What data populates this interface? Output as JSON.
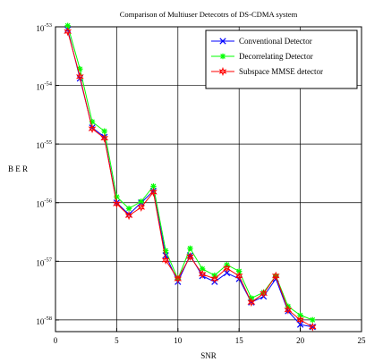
{
  "chart_data": {
    "type": "line",
    "title": "Comparison of Multiuser Detecotrs of DS-CDMA system",
    "xlabel": "SNR",
    "ylabel": "B E R",
    "xlim": [
      0,
      25
    ],
    "ylim_log10": [
      -58.2,
      -53.0
    ],
    "y_scale": "log",
    "grid": true,
    "legend_position": "top-right",
    "x_ticks": [
      "0",
      "5",
      "10",
      "15",
      "20",
      "25"
    ],
    "y_ticks": [
      {
        "base": "10",
        "exp": "-53",
        "value": -53
      },
      {
        "base": "10",
        "exp": "-54",
        "value": -54
      },
      {
        "base": "10",
        "exp": "-55",
        "value": -55
      },
      {
        "base": "10",
        "exp": "-56",
        "value": -56
      },
      {
        "base": "10",
        "exp": "-57",
        "value": -57
      },
      {
        "base": "10",
        "exp": "-58",
        "value": -58
      }
    ],
    "x": [
      1,
      2,
      3,
      4,
      5,
      6,
      7,
      8,
      9,
      10,
      11,
      12,
      13,
      14,
      15,
      16,
      17,
      18,
      19,
      20,
      21
    ],
    "series": [
      {
        "name": "Conventional Detector",
        "color": "#0000ff",
        "marker": "x",
        "values_log10": [
          -53.05,
          -53.88,
          -54.72,
          -54.88,
          -56.0,
          -56.2,
          -56.0,
          -55.8,
          -56.9,
          -57.35,
          -56.9,
          -57.25,
          -57.35,
          -57.2,
          -57.3,
          -57.7,
          -57.6,
          -57.3,
          -57.85,
          -58.08,
          -58.12
        ]
      },
      {
        "name": "Decorrelating Detector",
        "color": "#00ff00",
        "marker": "star",
        "values_log10": [
          -52.98,
          -53.72,
          -54.62,
          -54.78,
          -55.9,
          -56.1,
          -55.98,
          -55.72,
          -56.82,
          -57.3,
          -56.78,
          -57.13,
          -57.24,
          -57.06,
          -57.17,
          -57.63,
          -57.53,
          -57.25,
          -57.77,
          -57.92,
          -58.0
        ]
      },
      {
        "name": "Subspace MMSE detector",
        "color": "#ff0000",
        "marker": "hexagram",
        "values_log10": [
          -53.08,
          -53.85,
          -54.74,
          -54.9,
          -56.02,
          -56.22,
          -56.08,
          -55.82,
          -56.98,
          -57.3,
          -56.92,
          -57.22,
          -57.3,
          -57.12,
          -57.25,
          -57.7,
          -57.55,
          -57.25,
          -57.83,
          -58.0,
          -58.12
        ]
      }
    ]
  }
}
